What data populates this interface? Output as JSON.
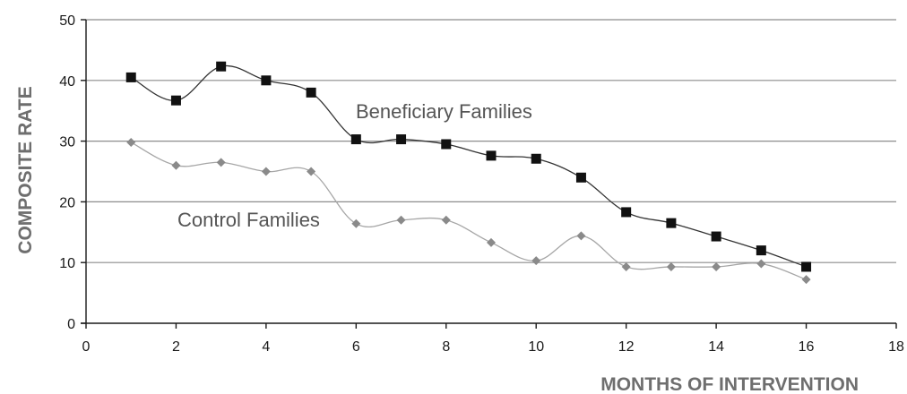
{
  "chart_data": {
    "type": "line",
    "title": "",
    "xlabel": "MONTHS OF INTERVENTION",
    "ylabel": "COMPOSITE RATE",
    "xlim": [
      0,
      18
    ],
    "ylim": [
      0,
      50
    ],
    "x_ticks": [
      0,
      2,
      4,
      6,
      8,
      10,
      12,
      14,
      16,
      18
    ],
    "y_ticks": [
      0,
      10,
      20,
      30,
      40,
      50
    ],
    "grid": "horizontal",
    "legend": "none",
    "series": [
      {
        "name": "Beneficiary Families",
        "marker": "square",
        "color": "#111111",
        "line_color": "#333333",
        "x": [
          1,
          2,
          3,
          4,
          5,
          6,
          7,
          8,
          9,
          10,
          11,
          12,
          13,
          14,
          15,
          16
        ],
        "y": [
          40.5,
          36.7,
          42.3,
          40.0,
          38.0,
          30.3,
          30.3,
          29.5,
          27.6,
          27.1,
          24.0,
          18.3,
          16.5,
          14.3,
          12.0,
          9.3
        ]
      },
      {
        "name": "Control Families",
        "marker": "diamond",
        "color": "#8a8a8a",
        "line_color": "#a6a6a6",
        "x": [
          1,
          2,
          3,
          4,
          5,
          6,
          7,
          8,
          9,
          10,
          11,
          12,
          13,
          14,
          15,
          16
        ],
        "y": [
          29.8,
          26.0,
          26.5,
          25.0,
          25.0,
          16.4,
          17.0,
          17.0,
          13.3,
          10.3,
          14.4,
          9.3,
          9.3,
          9.3,
          9.8,
          7.2
        ]
      }
    ]
  }
}
